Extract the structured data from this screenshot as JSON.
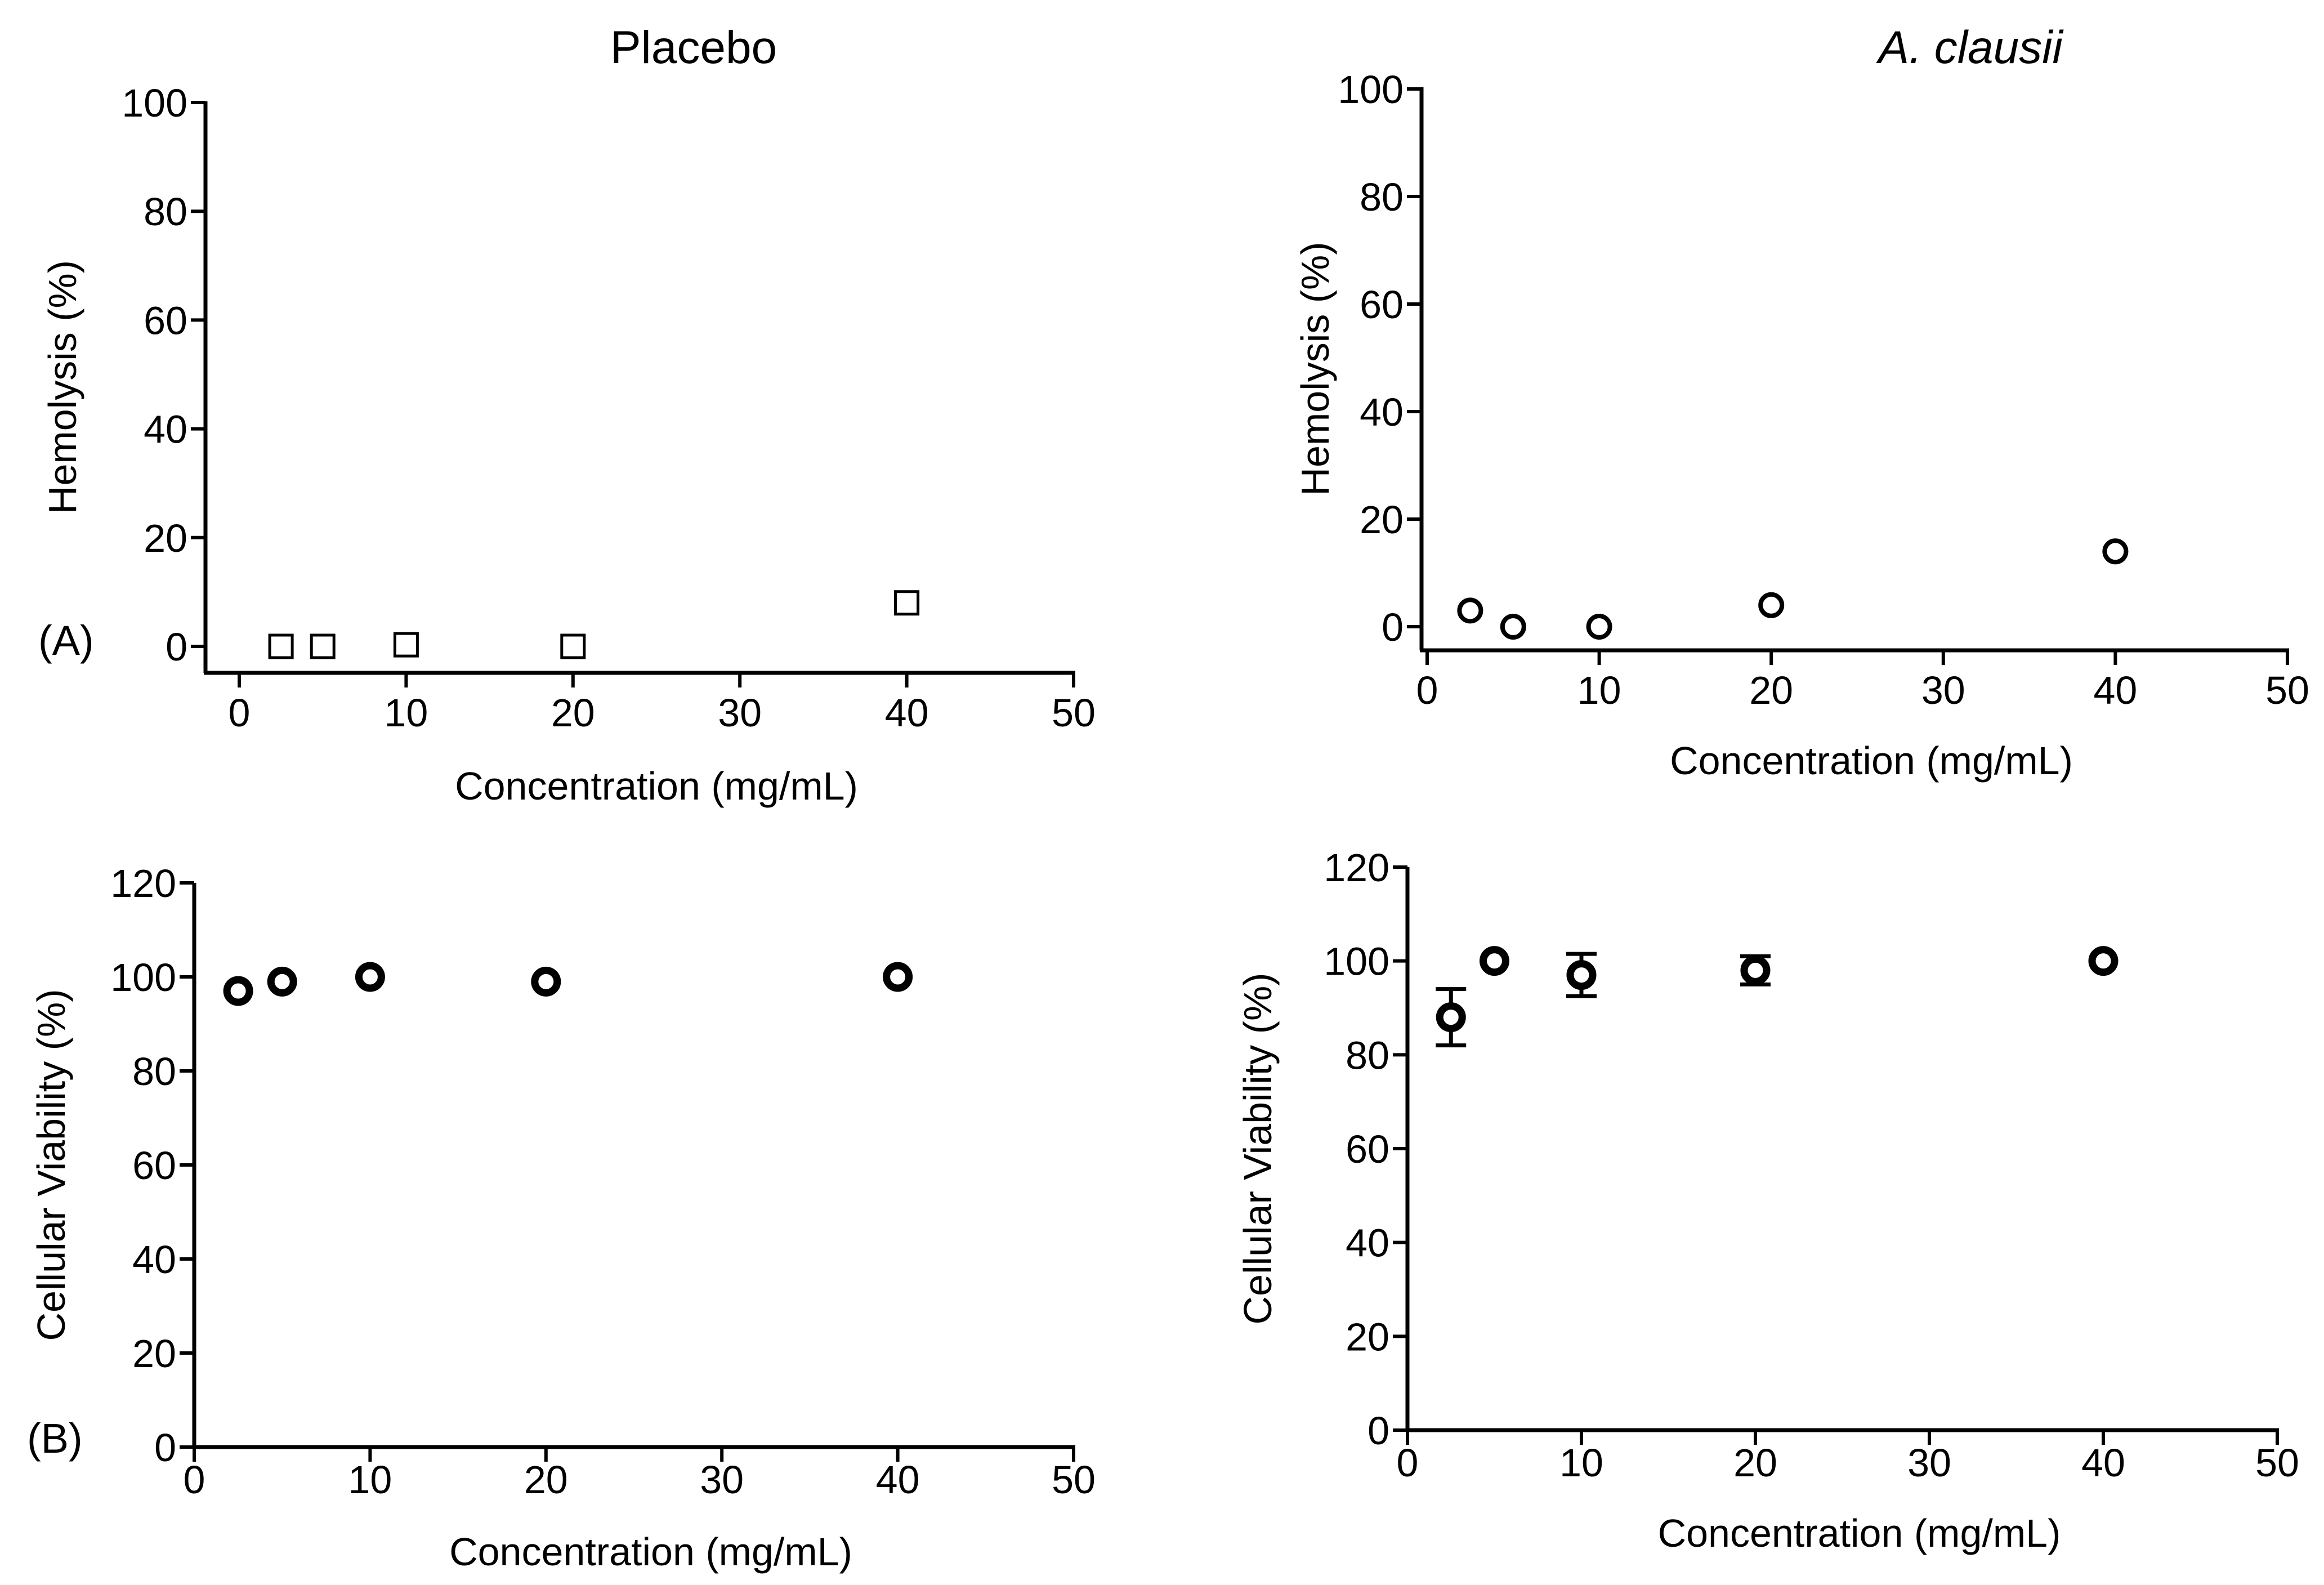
{
  "panel_titles": {
    "placebo": "Placebo",
    "clausii_genus": "A.",
    "clausii_species": "clausii"
  },
  "panel_labels": {
    "a": "(A)",
    "b": "(B)"
  },
  "chart_data": [
    {
      "id": "placebo-hemolysis",
      "type": "scatter",
      "title": "Placebo",
      "xlabel": "Concentration (mg/mL)",
      "ylabel": "Hemolysis (%)",
      "xlim": [
        0,
        50
      ],
      "ylim": [
        0,
        100
      ],
      "xticks": [
        0,
        10,
        20,
        30,
        40,
        50
      ],
      "yticks": [
        0,
        20,
        40,
        60,
        80,
        100
      ],
      "marker": "square",
      "series": [
        {
          "name": "Placebo",
          "x": [
            2.5,
            5,
            10,
            20,
            40
          ],
          "y": [
            0,
            0,
            0.3,
            0,
            8
          ]
        }
      ]
    },
    {
      "id": "clausii-hemolysis",
      "type": "scatter",
      "title": "A. clausii",
      "xlabel": "Concentration (mg/mL)",
      "ylabel": "Hemolysis (%)",
      "xlim": [
        0,
        50
      ],
      "ylim": [
        0,
        100
      ],
      "xticks": [
        0,
        10,
        20,
        30,
        40,
        50
      ],
      "yticks": [
        0,
        20,
        40,
        60,
        80,
        100
      ],
      "marker": "circle",
      "series": [
        {
          "name": "A. clausii",
          "x": [
            2.5,
            5,
            10,
            20,
            40
          ],
          "y": [
            3,
            0,
            0,
            4,
            14
          ]
        }
      ]
    },
    {
      "id": "placebo-viability",
      "type": "scatter",
      "xlabel": "Concentration (mg/mL)",
      "ylabel": "Cellular Viability (%)",
      "xlim": [
        0,
        50
      ],
      "ylim": [
        0,
        120
      ],
      "xticks": [
        0,
        10,
        20,
        30,
        40,
        50
      ],
      "yticks": [
        0,
        20,
        40,
        60,
        80,
        100,
        120
      ],
      "marker": "circle-bold",
      "series": [
        {
          "name": "Placebo",
          "x": [
            2.5,
            5,
            10,
            20,
            40
          ],
          "y": [
            97,
            99,
            100,
            99,
            100
          ]
        }
      ]
    },
    {
      "id": "clausii-viability",
      "type": "scatter",
      "xlabel": "Concentration (mg/mL)",
      "ylabel": "Cellular Viability (%)",
      "xlim": [
        0,
        50
      ],
      "ylim": [
        0,
        120
      ],
      "xticks": [
        0,
        10,
        20,
        30,
        40,
        50
      ],
      "yticks": [
        0,
        20,
        40,
        60,
        80,
        100,
        120
      ],
      "marker": "circle-bold",
      "series": [
        {
          "name": "A. clausii",
          "x": [
            2.5,
            5,
            10,
            20,
            40
          ],
          "y": [
            88,
            100,
            97,
            98,
            100
          ],
          "error": [
            6,
            1,
            4.5,
            3,
            1
          ]
        }
      ]
    }
  ]
}
